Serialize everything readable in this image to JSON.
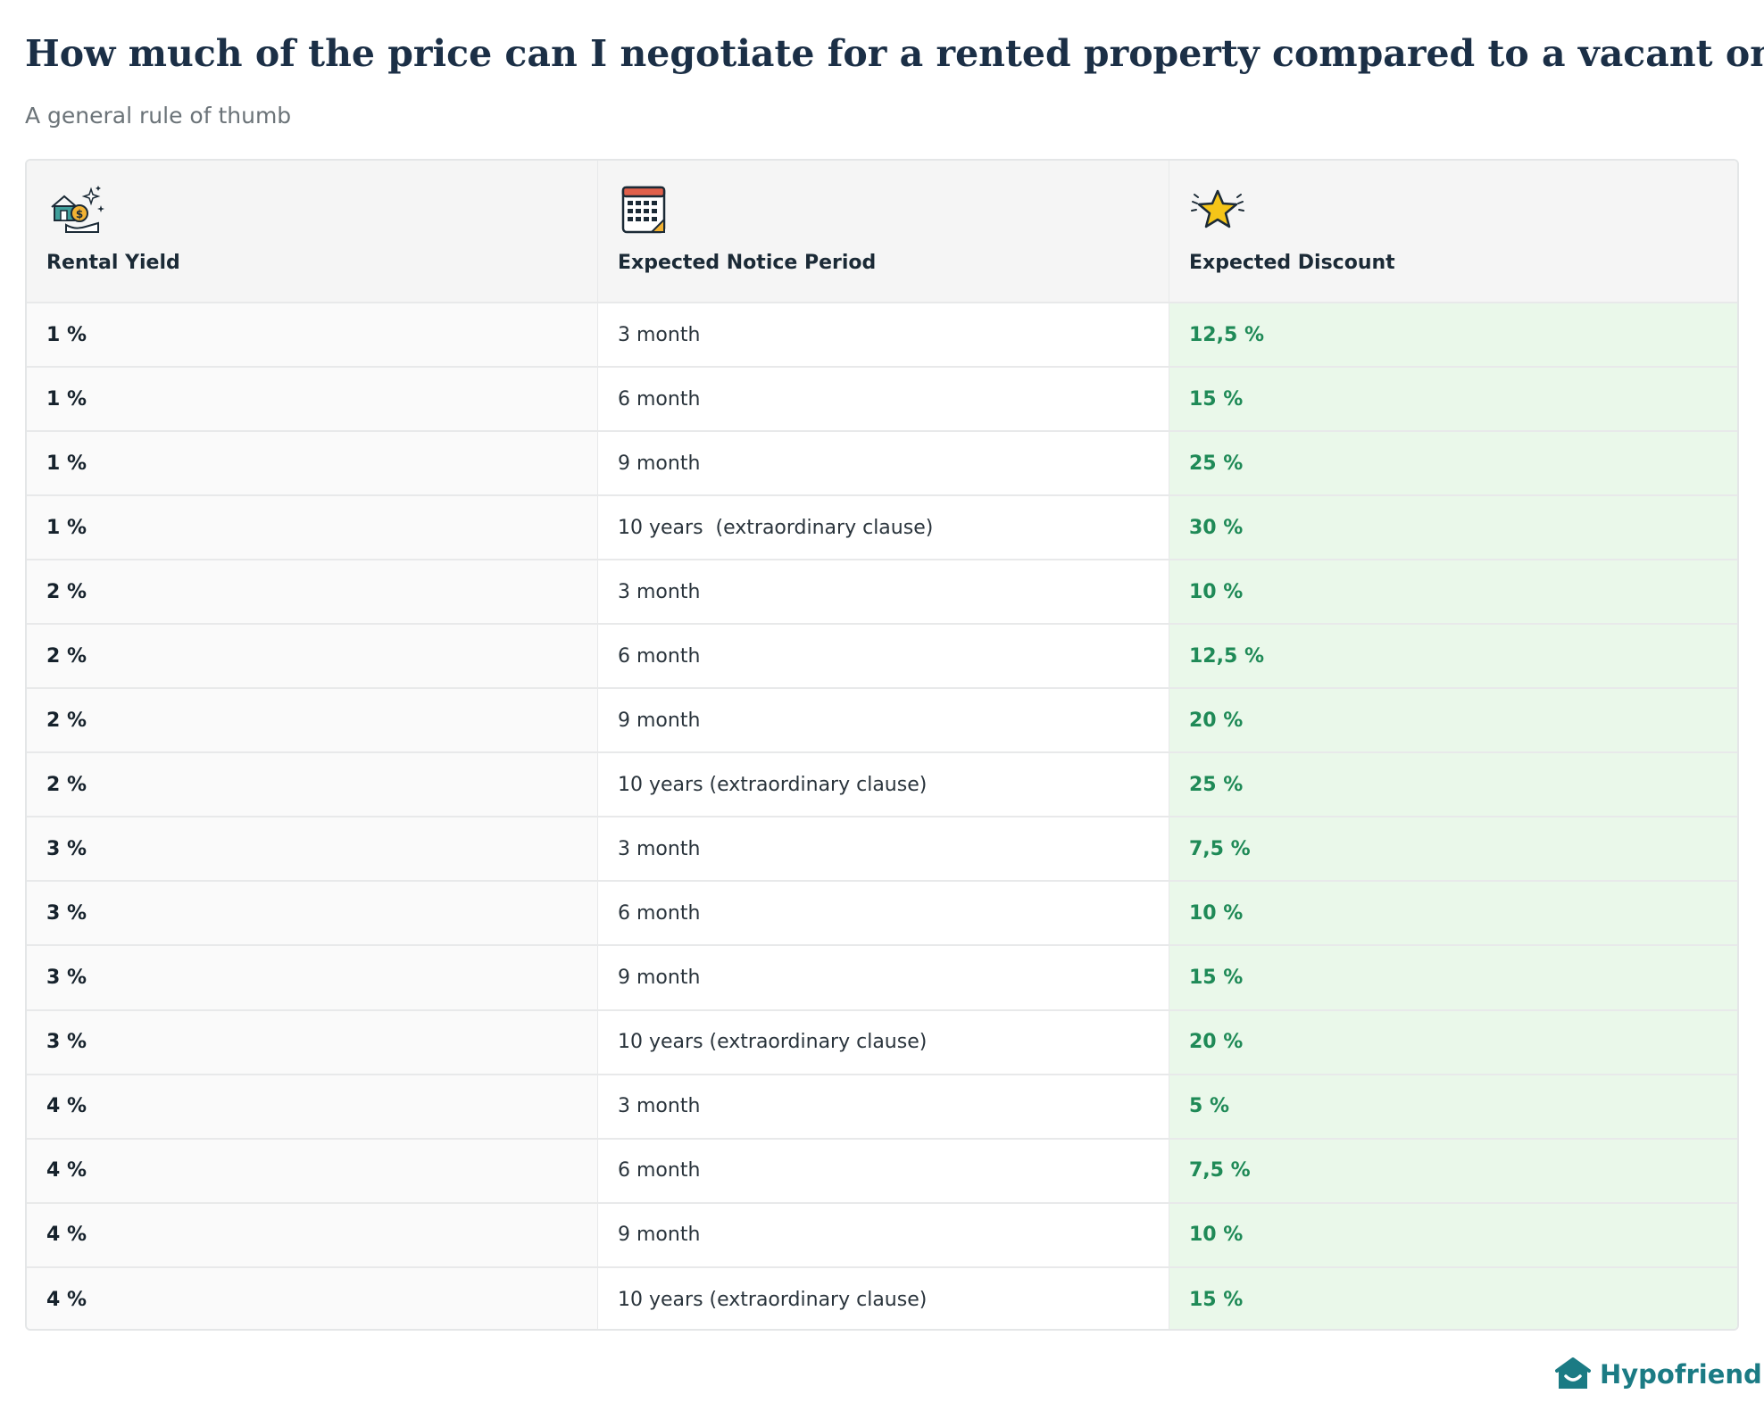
{
  "header": {
    "title": "How much of the price can I negotiate for a rented property compared to a vacant one?",
    "subtitle": "A general rule of thumb"
  },
  "table": {
    "columns": [
      {
        "label": "Rental Yield",
        "icon": "house-money-icon"
      },
      {
        "label": "Expected Notice Period",
        "icon": "calendar-icon"
      },
      {
        "label": "Expected Discount",
        "icon": "star-icon"
      }
    ],
    "rows": [
      [
        "1 %",
        "3 month",
        "12,5 %"
      ],
      [
        "1 %",
        "6 month",
        "15 %"
      ],
      [
        "1 %",
        "9 month",
        "25 %"
      ],
      [
        "1 %",
        "10 years  (extraordinary clause)",
        "30 %"
      ],
      [
        "2 %",
        "3 month",
        "10 %"
      ],
      [
        "2 %",
        "6 month",
        "12,5 %"
      ],
      [
        "2 %",
        "9 month",
        "20 %"
      ],
      [
        "2 %",
        "10 years (extraordinary clause)",
        "25 %"
      ],
      [
        "3 %",
        "3 month",
        "7,5 %"
      ],
      [
        "3 %",
        "6 month",
        "10 %"
      ],
      [
        "3 %",
        "9 month",
        "15 %"
      ],
      [
        "3 %",
        "10 years (extraordinary clause)",
        "20 %"
      ],
      [
        "4 %",
        "3 month",
        "5 %"
      ],
      [
        "4 %",
        "6 month",
        "7,5 %"
      ],
      [
        "4 %",
        "9 month",
        "10 %"
      ],
      [
        "4 %",
        "10 years (extraordinary clause)",
        "15 %"
      ]
    ]
  },
  "colors": {
    "title": "#1b2f46",
    "discount_text": "#1f8a57",
    "discount_bg": "#eaf8ea",
    "brand": "#1b7b84"
  },
  "brand": {
    "name": "Hypofriend",
    "icon": "house-logo-icon"
  }
}
